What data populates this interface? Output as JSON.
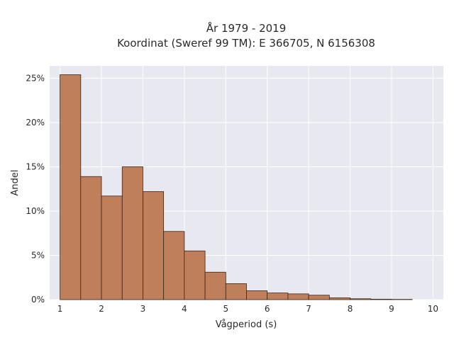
{
  "chart_data": {
    "type": "bar",
    "title_line1": "År 1979 - 2019",
    "title_line2": "Koordinat (Sweref 99 TM): E 366705, N 6156308",
    "xlabel": "Vågperiod (s)",
    "ylabel": "Andel",
    "bin_width": 0.5,
    "bins": [
      1.0,
      1.5,
      2.0,
      2.5,
      3.0,
      3.5,
      4.0,
      4.5,
      5.0,
      5.5,
      6.0,
      6.5,
      7.0,
      7.5,
      8.0,
      8.5,
      9.0
    ],
    "values": [
      25.4,
      13.9,
      11.7,
      15.0,
      12.2,
      7.7,
      5.5,
      3.1,
      1.8,
      1.0,
      0.75,
      0.65,
      0.5,
      0.2,
      0.1,
      0.05,
      0.03
    ],
    "xlim": [
      0.75,
      10.25
    ],
    "ylim": [
      0,
      26.4
    ],
    "x_ticks": [
      1,
      2,
      3,
      4,
      5,
      6,
      7,
      8,
      9,
      10
    ],
    "x_tick_labels": [
      "1",
      "2",
      "3",
      "4",
      "5",
      "6",
      "7",
      "8",
      "9",
      "10"
    ],
    "y_ticks": [
      0,
      5,
      10,
      15,
      20,
      25
    ],
    "y_tick_labels": [
      "0%",
      "5%",
      "10%",
      "15%",
      "20%",
      "25%"
    ],
    "grid": true,
    "colors": {
      "bar_fill": "#bf7f5a",
      "bar_stroke": "#3b2418",
      "plot_bg": "#e8e8f1",
      "grid": "#ffffff"
    }
  }
}
